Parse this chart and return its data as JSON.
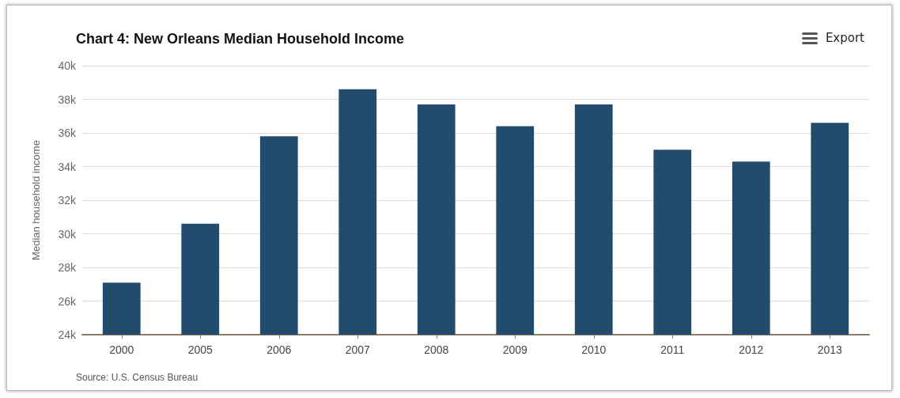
{
  "chart_data": {
    "type": "bar",
    "title": "Chart 4: New Orleans Median Household Income",
    "ylabel": "Median household income",
    "categories": [
      "2000",
      "2005",
      "2006",
      "2007",
      "2008",
      "2009",
      "2010",
      "2011",
      "2012",
      "2013"
    ],
    "values": [
      27100,
      30600,
      35800,
      38600,
      37700,
      36400,
      37700,
      35000,
      34300,
      36600
    ],
    "color": "#234b6e",
    "ylim": [
      24000,
      40000
    ],
    "yticks": [
      {
        "value": 24000,
        "label": "24k"
      },
      {
        "value": 26000,
        "label": "26k"
      },
      {
        "value": 28000,
        "label": "28k"
      },
      {
        "value": 30000,
        "label": "30k"
      },
      {
        "value": 32000,
        "label": "32k"
      },
      {
        "value": 34000,
        "label": "34k"
      },
      {
        "value": 36000,
        "label": "36k"
      },
      {
        "value": 38000,
        "label": "38k"
      },
      {
        "value": 40000,
        "label": "40k"
      }
    ],
    "grid": "y",
    "annotations": [
      "Source: U.S. Census Bureau",
      "Export"
    ]
  }
}
